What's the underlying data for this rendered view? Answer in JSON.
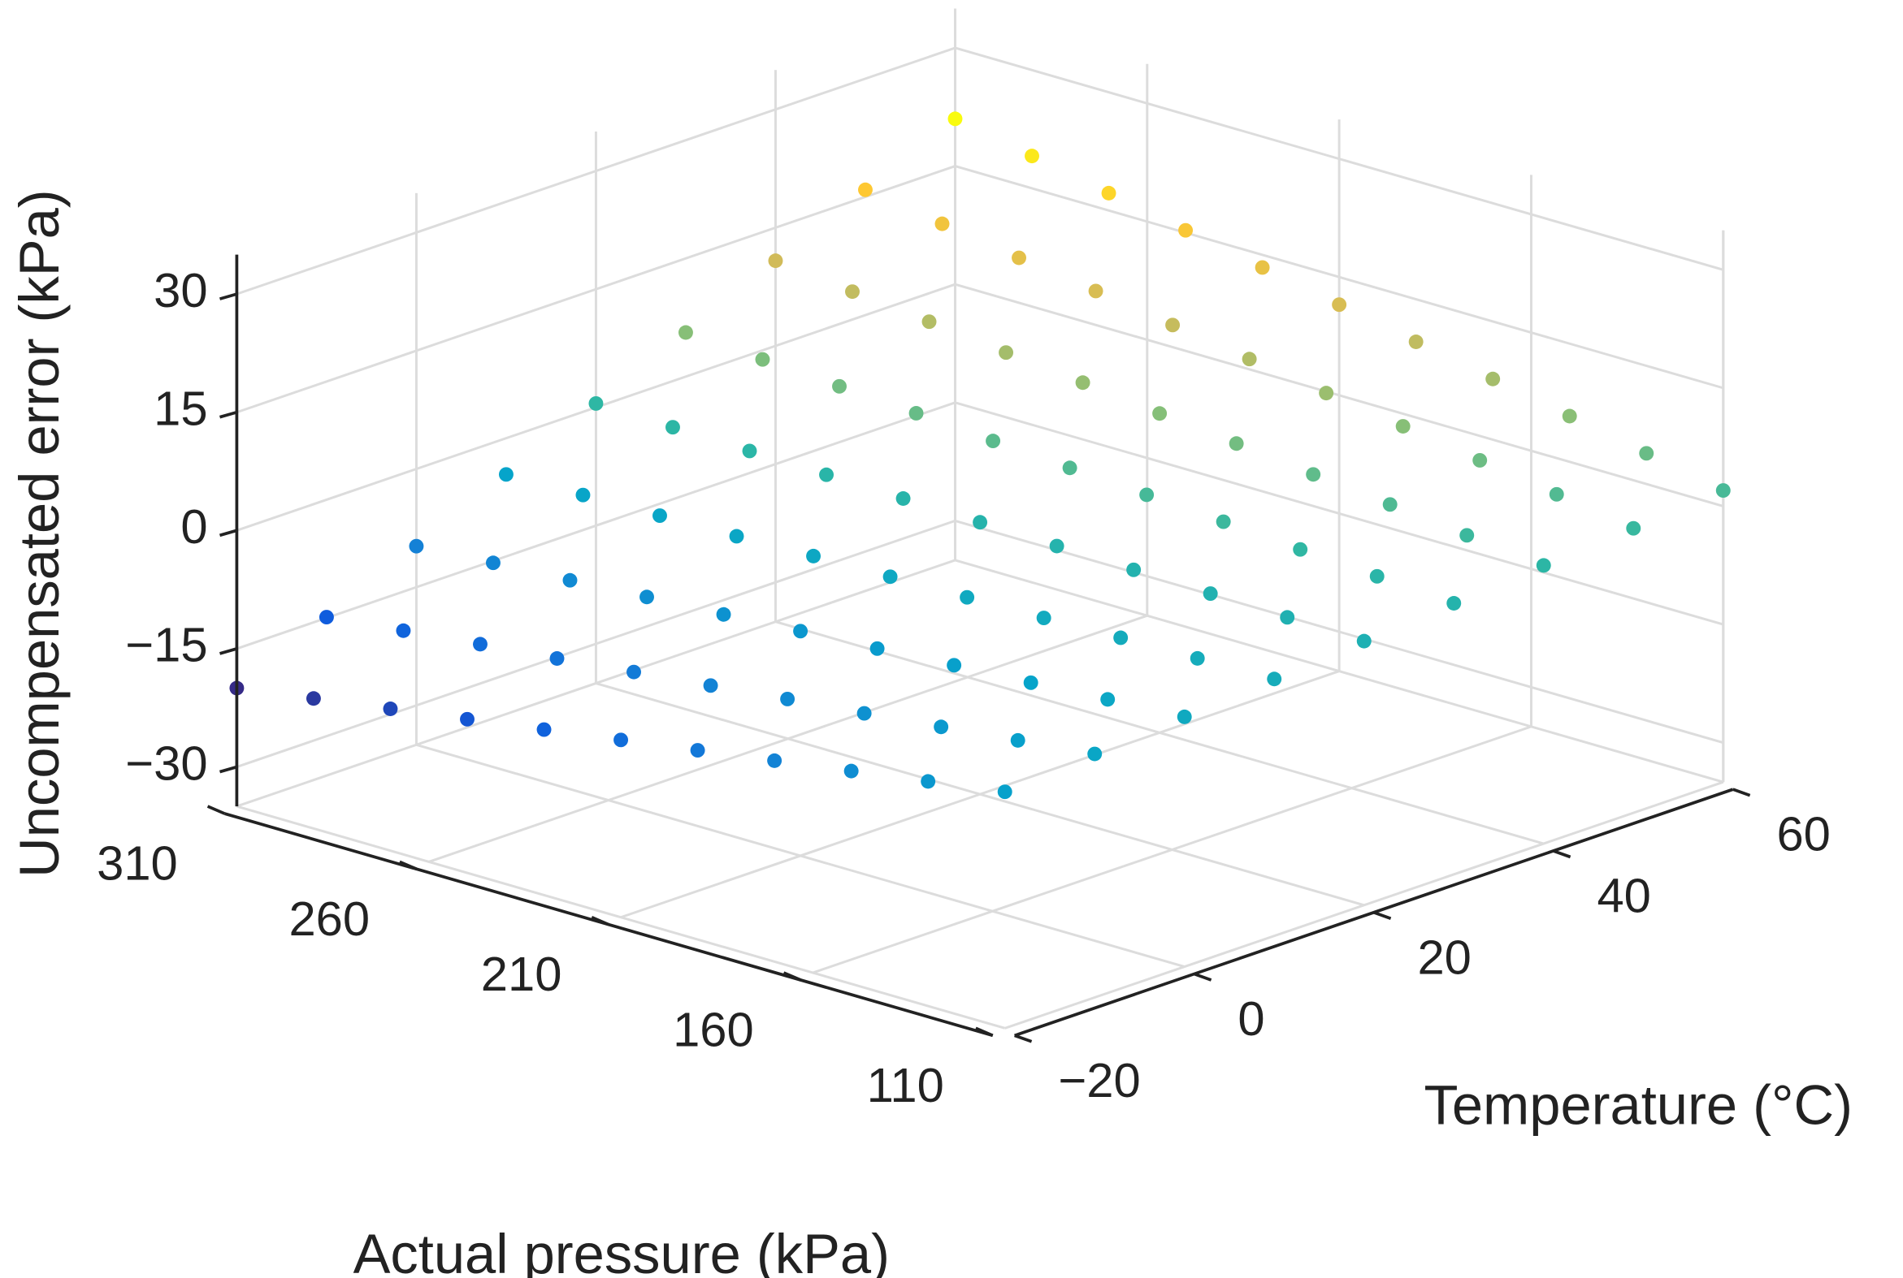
{
  "chart_data": {
    "type": "scatter3d",
    "xlabel": "Actual pressure (kPa)",
    "ylabel": "Temperature (°C)",
    "zlabel": "Uncompensated  error (kPa)",
    "colormap": "parula",
    "grid": true,
    "pressure": [
      110,
      130,
      150,
      170,
      190,
      210,
      230,
      250,
      270,
      290,
      310
    ],
    "temperature": [
      -20,
      -10,
      0,
      10,
      20,
      30,
      40,
      50,
      60
    ],
    "error": [
      [
        -5,
        -4.1,
        -3.3,
        -2.4,
        -1.5,
        -0.6,
        0.3,
        1.1,
        2
      ],
      [
        -6.5,
        -5.2,
        -3.9,
        -2.6,
        -1.3,
        0,
        1.3,
        2.6,
        3.9
      ],
      [
        -8,
        -6.3,
        -4.6,
        -2.8,
        -1.1,
        0.6,
        2.4,
        4.1,
        5.8
      ],
      [
        -9.5,
        -7.4,
        -5.2,
        -3.1,
        -0.9,
        1.3,
        3.4,
        5.6,
        7.7
      ],
      [
        -11,
        -8.4,
        -5.9,
        -3.3,
        -0.7,
        1.9,
        4.5,
        7.0,
        9.6
      ],
      [
        -12.5,
        -9.5,
        -6.5,
        -3.5,
        -0.5,
        2.5,
        5.5,
        8.5,
        11.5
      ],
      [
        -14,
        -10.6,
        -7.2,
        -3.7,
        -0.3,
        3.1,
        6.6,
        10,
        13.4
      ],
      [
        -15.5,
        -11.7,
        -7.8,
        -4.0,
        -0.1,
        3.8,
        7.6,
        11.5,
        15.3
      ],
      [
        -17,
        -12.7,
        -8.5,
        -4.2,
        0.1,
        4.4,
        8.7,
        12.9,
        17.2
      ],
      [
        -18.5,
        -13.8,
        -9.1,
        -4.4,
        0.3,
        5,
        9.7,
        14.4,
        19.1
      ],
      [
        -20,
        -14.9,
        -9.8,
        -4.6,
        0.5,
        5.6,
        10.8,
        15.9,
        21
      ]
    ],
    "xlim": [
      110,
      310
    ],
    "xticks": [
      110,
      160,
      210,
      260,
      310
    ],
    "ylim": [
      -20,
      60
    ],
    "yticks": [
      {
        "value": -20,
        "label": "−20"
      },
      0,
      20,
      40,
      60
    ],
    "zlim": [
      -35,
      35
    ],
    "zticks": [
      {
        "value": -30,
        "label": "−30"
      },
      {
        "value": -15,
        "label": "−15"
      },
      0,
      15,
      30
    ]
  }
}
